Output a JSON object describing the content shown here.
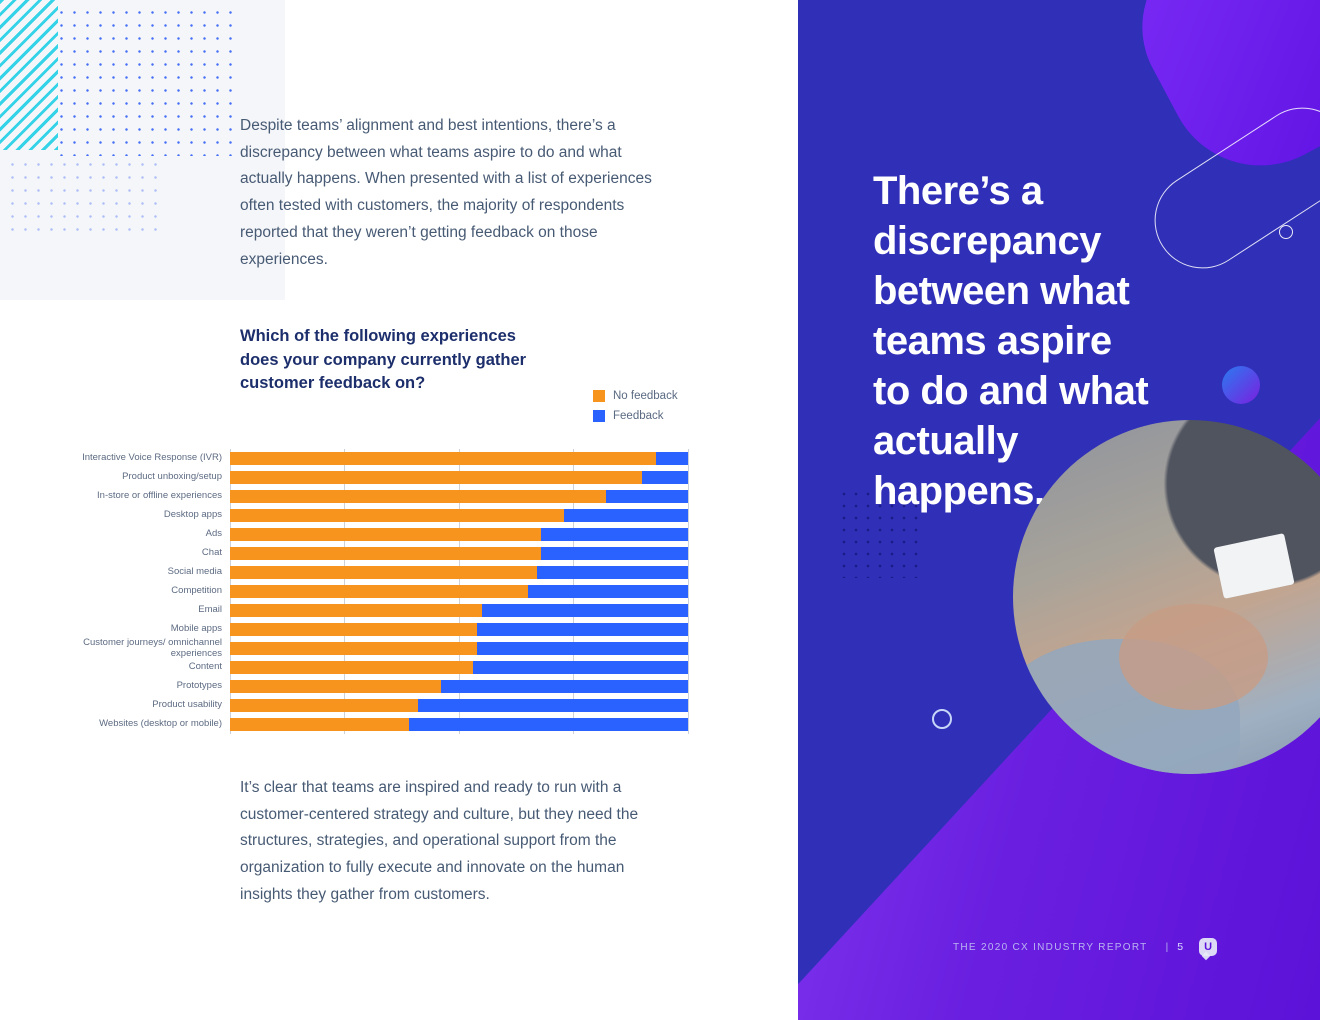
{
  "left": {
    "intro": "Despite teams’ alignment and best intentions, there’s a discrepancy between what teams aspire to do and what actually happens. When presented with a list of experiences often tested with customers, the majority of respondents reported that they weren’t getting feedback on those experiences.",
    "closing": "It’s clear that teams are inspired and ready to run with a customer-centered strategy and culture, but they need the structures, strategies, and operational support from the organization to fully execute and innovate on the human insights they gather from customers."
  },
  "chart_data": {
    "type": "bar",
    "orientation": "horizontal",
    "stacked": true,
    "units": "percent of respondents",
    "title": "Which of the following experiences does your company currently gather customer feedback on?",
    "categories": [
      "Interactive Voice Response (IVR)",
      "Product unboxing/setup",
      "In-store or offline experiences",
      "Desktop apps",
      "Ads",
      "Chat",
      "Social media",
      "Competition",
      "Email",
      "Mobile apps",
      "Customer journeys/ omnichannel experiences",
      "Content",
      "Prototypes",
      "Product usability",
      "Websites (desktop or mobile)"
    ],
    "series": [
      {
        "name": "No feedback",
        "color": "#F7941E",
        "values": [
          93,
          90,
          82,
          73,
          68,
          68,
          67,
          65,
          55,
          54,
          54,
          53,
          46,
          41,
          39
        ]
      },
      {
        "name": "Feedback",
        "color": "#2962FF",
        "values": [
          7,
          10,
          18,
          27,
          32,
          32,
          33,
          35,
          45,
          46,
          46,
          47,
          54,
          59,
          61
        ]
      }
    ],
    "xlim": [
      0,
      100
    ],
    "gridlines_percent": [
      0,
      25,
      50,
      75,
      100
    ],
    "legend_position": "top-right",
    "grid": true
  },
  "right_panel": {
    "headline": "There’s a discrepancy between what teams aspire to do and what actually happens.",
    "footer_title": "THE 2020 CX INDUSTRY REPORT",
    "footer_separator": "|",
    "page_number": "5",
    "logo_letter": "U"
  },
  "colors": {
    "no_feedback_orange": "#F7941E",
    "feedback_blue": "#2962FF",
    "panel_indigo": "#2F2FB8",
    "violet_accent": "#6A1FE0",
    "cyan_accent": "#35D3E8",
    "heading_navy": "#1C2E6B",
    "body_text": "#475A74"
  }
}
